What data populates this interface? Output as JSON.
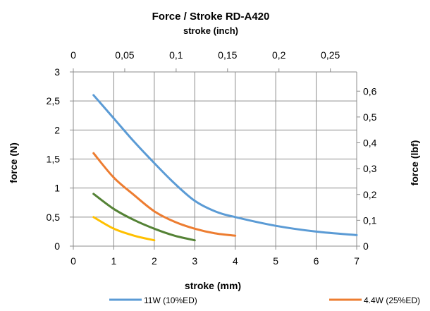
{
  "chart_data": {
    "type": "line",
    "title": "Force / Stroke  RD-A420",
    "secondary_xlabel": "stroke (inch)",
    "xlabel": "stroke (mm)",
    "ylabel": "force (N)",
    "secondary_ylabel": "force (lbf)",
    "xlim": [
      0,
      7
    ],
    "ylim": [
      0,
      3
    ],
    "x_ticks": [
      "0",
      "1",
      "2",
      "3",
      "4",
      "5",
      "6",
      "7"
    ],
    "y_ticks": [
      "0",
      "0,5",
      "1",
      "1,5",
      "2",
      "2,5",
      "3"
    ],
    "secondary_x_ticks": [
      "0",
      "0,05",
      "0,1",
      "0,15",
      "0,2",
      "0,25"
    ],
    "secondary_x_tick_values": [
      0,
      0.05,
      0.1,
      0.15,
      0.2,
      0.25
    ],
    "secondary_y_ticks": [
      "0",
      "0,1",
      "0,2",
      "0,3",
      "0,4",
      "0,5",
      "0,6"
    ],
    "secondary_y_tick_values": [
      0,
      0.1,
      0.2,
      0.3,
      0.4,
      0.5,
      0.6
    ],
    "grid": true,
    "legend_position": "bottom",
    "series": [
      {
        "name": "11W (10%ED)",
        "color": "#5b9bd5",
        "x": [
          0.5,
          1,
          1.5,
          2,
          2.5,
          3,
          3.5,
          4,
          5,
          6,
          7
        ],
        "y": [
          2.6,
          2.2,
          1.8,
          1.43,
          1.08,
          0.78,
          0.6,
          0.5,
          0.35,
          0.25,
          0.19
        ]
      },
      {
        "name": "4.4W (25%ED)",
        "color": "#ed7d31",
        "x": [
          0.5,
          1,
          1.5,
          2,
          2.5,
          3,
          3.5,
          4
        ],
        "y": [
          1.6,
          1.18,
          0.88,
          0.6,
          0.42,
          0.3,
          0.22,
          0.18
        ]
      },
      {
        "name": "",
        "color": "#548235",
        "x": [
          0.5,
          1,
          1.5,
          2,
          2.5,
          3
        ],
        "y": [
          0.9,
          0.64,
          0.45,
          0.3,
          0.18,
          0.1
        ]
      },
      {
        "name": "",
        "color": "#ffc000",
        "x": [
          0.5,
          1,
          1.5,
          2
        ],
        "y": [
          0.5,
          0.3,
          0.18,
          0.1
        ]
      }
    ]
  }
}
